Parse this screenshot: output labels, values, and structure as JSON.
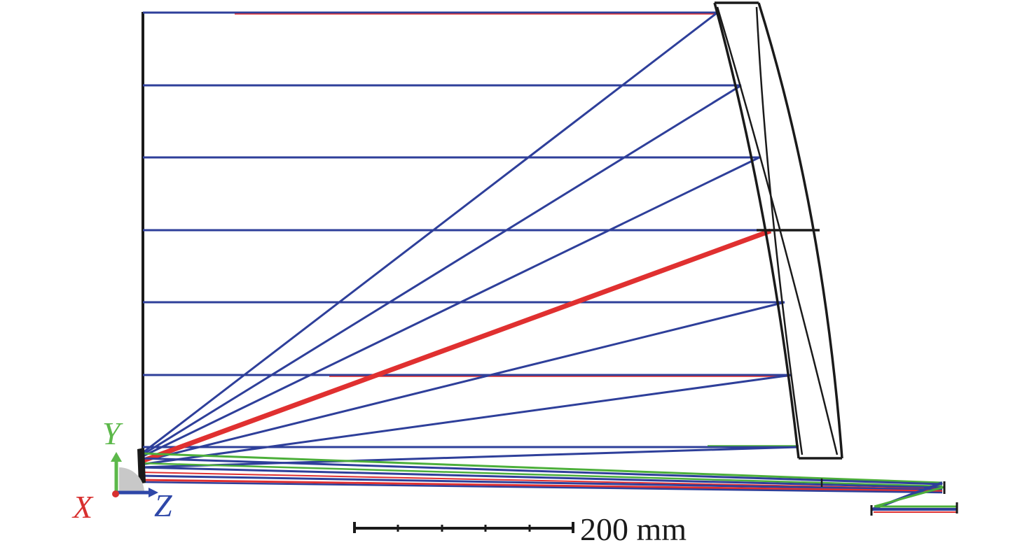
{
  "scale_bar": {
    "label": "200 mm"
  },
  "axes": {
    "x_label": "X",
    "y_label": "Y",
    "z_label": "Z"
  },
  "colors": {
    "ray_blue": "#2e3f9a",
    "ray_red": "#e03030",
    "ray_green": "#4caf3a",
    "outline": "#1a1a1a",
    "axis_x": "#d8302f",
    "axis_y": "#5cb84a",
    "axis_z": "#2e47a8"
  }
}
